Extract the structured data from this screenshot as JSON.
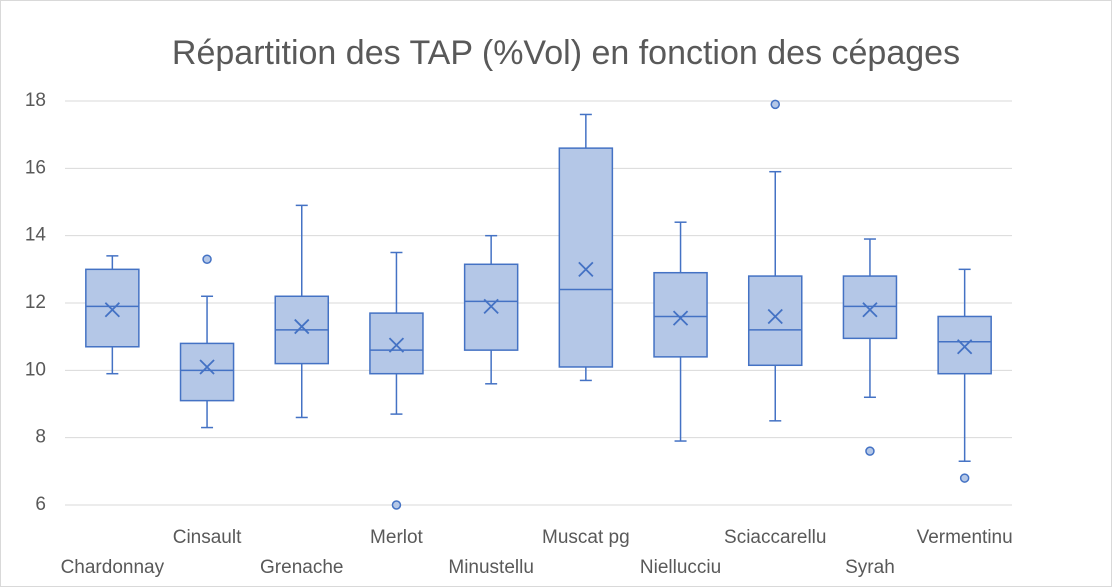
{
  "chart_data": {
    "type": "box",
    "title": "Répartition des TAP (%Vol) en fonction des cépages",
    "categories": [
      "Chardonnay",
      "Cinsault",
      "Grenache",
      "Merlot",
      "Minustellu",
      "Muscat pg",
      "Niellucciu",
      "Sciaccarellu",
      "Syrah",
      "Vermentinu"
    ],
    "boxes": [
      {
        "min": 9.9,
        "q1": 10.7,
        "median": 11.9,
        "q3": 13.0,
        "max": 13.4,
        "mean": 11.8,
        "outliers": []
      },
      {
        "min": 8.3,
        "q1": 9.1,
        "median": 10.0,
        "q3": 10.8,
        "max": 12.2,
        "mean": 10.1,
        "outliers": [
          13.3
        ]
      },
      {
        "min": 8.6,
        "q1": 10.2,
        "median": 11.2,
        "q3": 12.2,
        "max": 14.9,
        "mean": 11.3,
        "outliers": []
      },
      {
        "min": 8.7,
        "q1": 9.9,
        "median": 10.6,
        "q3": 11.7,
        "max": 13.5,
        "mean": 10.75,
        "outliers": [
          6.0
        ]
      },
      {
        "min": 9.6,
        "q1": 10.6,
        "median": 12.05,
        "q3": 13.15,
        "max": 14.0,
        "mean": 11.9,
        "outliers": []
      },
      {
        "min": 9.7,
        "q1": 10.1,
        "median": 12.4,
        "q3": 16.6,
        "max": 17.6,
        "mean": 13.0,
        "outliers": []
      },
      {
        "min": 7.9,
        "q1": 10.4,
        "median": 11.6,
        "q3": 12.9,
        "max": 14.4,
        "mean": 11.55,
        "outliers": []
      },
      {
        "min": 8.5,
        "q1": 10.15,
        "median": 11.2,
        "q3": 12.8,
        "max": 15.9,
        "mean": 11.6,
        "outliers": [
          17.9
        ]
      },
      {
        "min": 9.2,
        "q1": 10.95,
        "median": 11.9,
        "q3": 12.8,
        "max": 13.9,
        "mean": 11.8,
        "outliers": [
          7.6
        ]
      },
      {
        "min": 7.3,
        "q1": 9.9,
        "median": 10.85,
        "q3": 11.6,
        "max": 13.0,
        "mean": 10.7,
        "outliers": [
          6.8
        ]
      }
    ],
    "color": "#4472c4",
    "fill": "#b4c7e7",
    "ylim": [
      6,
      18
    ],
    "yticks": [
      6,
      8,
      10,
      12,
      14,
      16,
      18
    ],
    "grid": true
  }
}
